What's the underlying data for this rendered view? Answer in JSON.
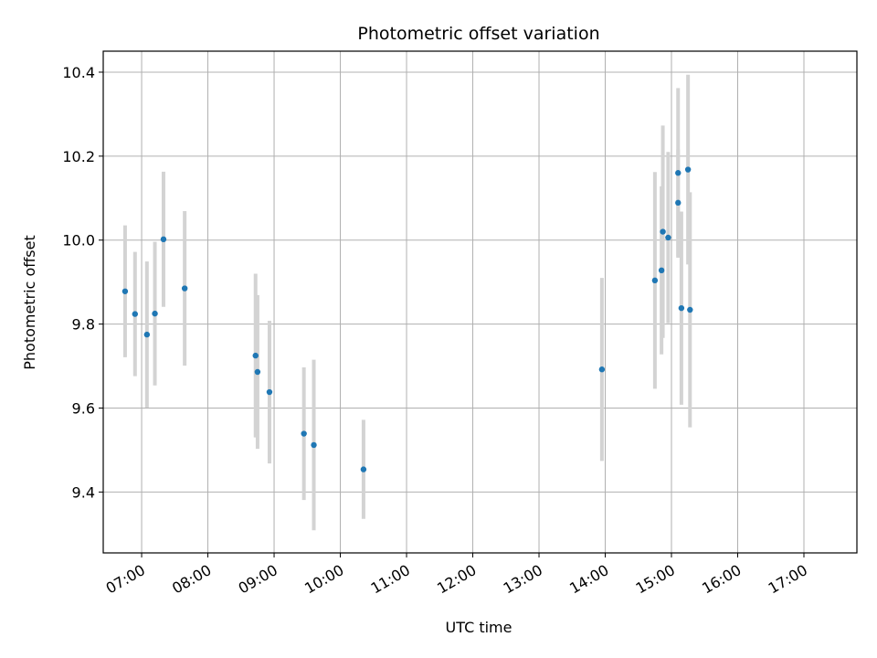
{
  "chart_data": {
    "type": "scatter",
    "title": "Photometric offset variation",
    "xlabel": "UTC time",
    "ylabel": "Photometric offset",
    "x_unit": "hours UTC",
    "xlim": [
      6.42,
      17.8
    ],
    "ylim": [
      9.255,
      10.45
    ],
    "x_ticks": [
      {
        "value": 7,
        "label": "07:00"
      },
      {
        "value": 8,
        "label": "08:00"
      },
      {
        "value": 9,
        "label": "09:00"
      },
      {
        "value": 10,
        "label": "10:00"
      },
      {
        "value": 11,
        "label": "11:00"
      },
      {
        "value": 12,
        "label": "12:00"
      },
      {
        "value": 13,
        "label": "13:00"
      },
      {
        "value": 14,
        "label": "14:00"
      },
      {
        "value": 15,
        "label": "15:00"
      },
      {
        "value": 16,
        "label": "16:00"
      },
      {
        "value": 17,
        "label": "17:00"
      }
    ],
    "y_ticks": [
      {
        "value": 9.4,
        "label": "9.4"
      },
      {
        "value": 9.6,
        "label": "9.6"
      },
      {
        "value": 9.8,
        "label": "9.8"
      },
      {
        "value": 10.0,
        "label": "10.0"
      },
      {
        "value": 10.2,
        "label": "10.2"
      },
      {
        "value": 10.4,
        "label": "10.4"
      }
    ],
    "grid": true,
    "colors": {
      "marker": "#1f77b4",
      "errorbar": "#d3d3d3",
      "grid": "#b0b0b0"
    },
    "points": [
      {
        "x": 6.75,
        "y": 9.878,
        "yerr": 0.157
      },
      {
        "x": 6.9,
        "y": 9.824,
        "yerr": 0.148
      },
      {
        "x": 7.08,
        "y": 9.775,
        "yerr": 0.174
      },
      {
        "x": 7.2,
        "y": 9.825,
        "yerr": 0.171
      },
      {
        "x": 7.33,
        "y": 10.002,
        "yerr": 0.161
      },
      {
        "x": 7.65,
        "y": 9.885,
        "yerr": 0.184
      },
      {
        "x": 8.72,
        "y": 9.725,
        "yerr": 0.195
      },
      {
        "x": 8.75,
        "y": 9.686,
        "yerr": 0.183
      },
      {
        "x": 8.93,
        "y": 9.638,
        "yerr": 0.17
      },
      {
        "x": 9.45,
        "y": 9.539,
        "yerr": 0.158
      },
      {
        "x": 9.6,
        "y": 9.512,
        "yerr": 0.203
      },
      {
        "x": 10.35,
        "y": 9.454,
        "yerr": 0.118
      },
      {
        "x": 13.95,
        "y": 9.692,
        "yerr": 0.218
      },
      {
        "x": 14.75,
        "y": 9.904,
        "yerr": 0.258
      },
      {
        "x": 14.85,
        "y": 9.928,
        "yerr": 0.2
      },
      {
        "x": 14.87,
        "y": 10.02,
        "yerr": 0.253
      },
      {
        "x": 14.95,
        "y": 10.006,
        "yerr": 0.204
      },
      {
        "x": 15.1,
        "y": 10.089,
        "yerr": 0.127
      },
      {
        "x": 15.1,
        "y": 10.16,
        "yerr": 0.202
      },
      {
        "x": 15.15,
        "y": 9.838,
        "yerr": 0.23
      },
      {
        "x": 15.25,
        "y": 10.168,
        "yerr": 0.226
      },
      {
        "x": 15.28,
        "y": 9.834,
        "yerr": 0.28
      }
    ]
  }
}
